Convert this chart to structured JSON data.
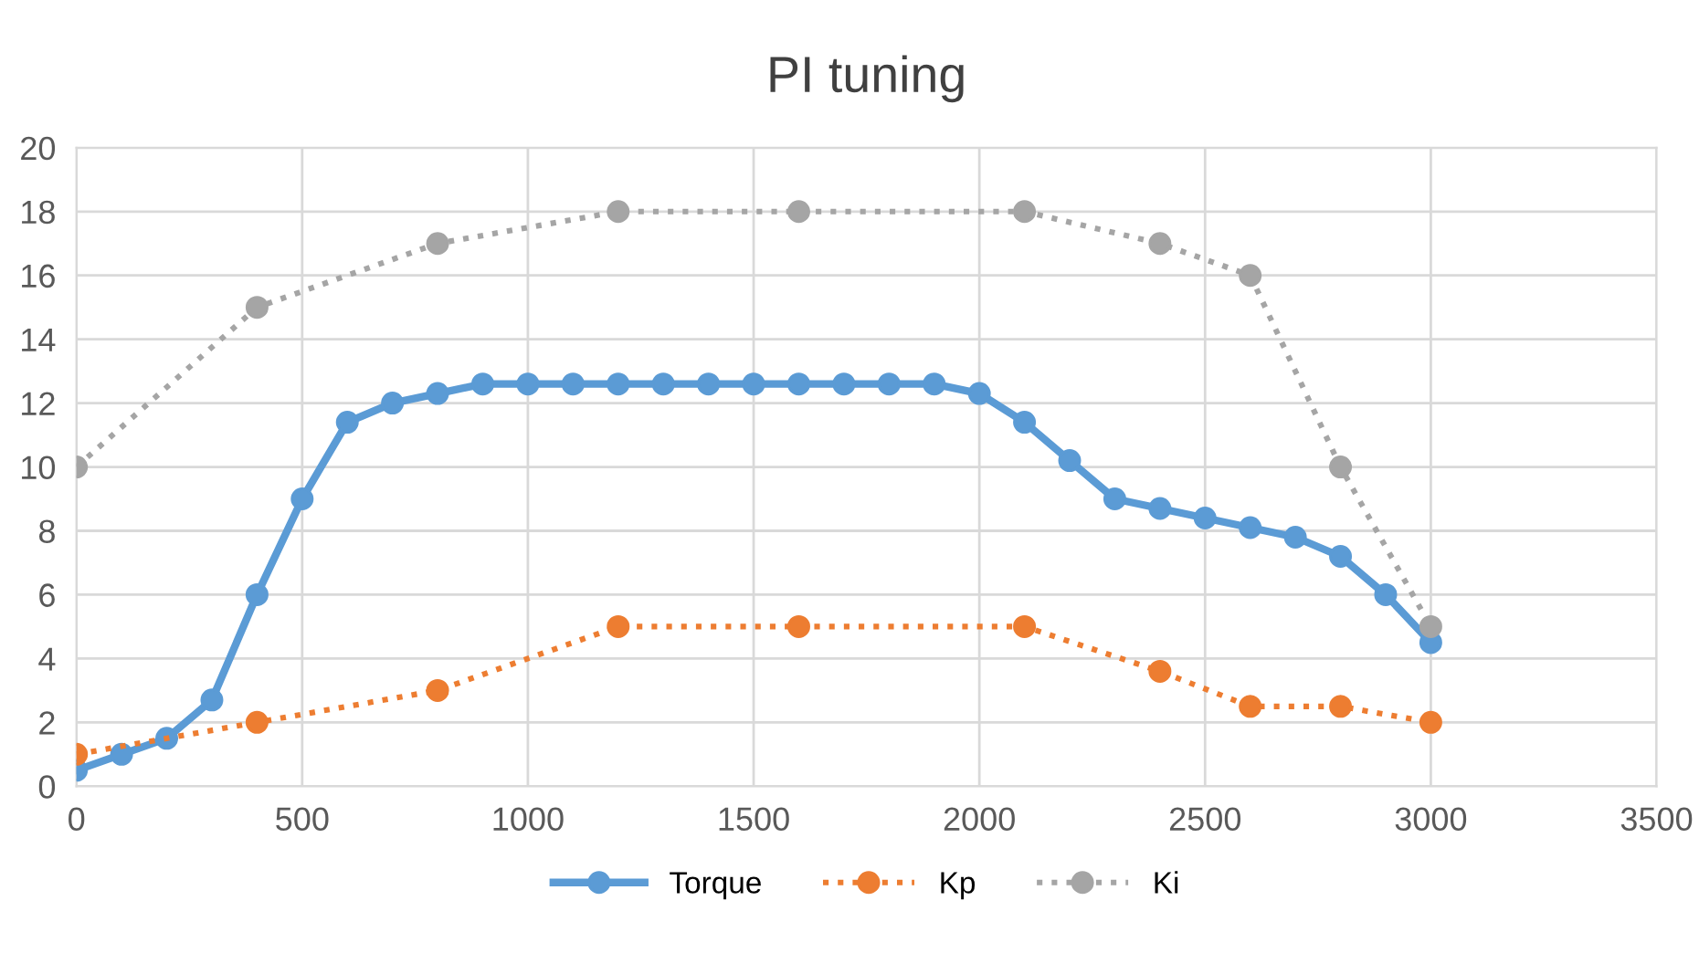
{
  "chart_data": {
    "type": "line",
    "title": "PI tuning",
    "xlim": [
      0,
      3500
    ],
    "xticks": [
      0,
      500,
      1000,
      1500,
      2000,
      2500,
      3000,
      3500
    ],
    "ylim": [
      0,
      20
    ],
    "yticks": [
      0,
      2,
      4,
      6,
      8,
      10,
      12,
      14,
      16,
      18,
      20
    ],
    "grid": true,
    "legend": "bottom",
    "marker": "circle",
    "series": [
      {
        "name": "Torque",
        "color": "#5b9bd5",
        "line_style": "solid",
        "x": [
          0,
          100,
          200,
          300,
          400,
          500,
          600,
          700,
          800,
          900,
          1000,
          1100,
          1200,
          1300,
          1400,
          1500,
          1600,
          1700,
          1800,
          1900,
          2000,
          2100,
          2200,
          2300,
          2400,
          2500,
          2600,
          2700,
          2800,
          2900,
          3000
        ],
        "values": [
          0.5,
          1.0,
          1.5,
          2.7,
          6.0,
          9.0,
          11.4,
          12.0,
          12.3,
          12.6,
          12.6,
          12.6,
          12.6,
          12.6,
          12.6,
          12.6,
          12.6,
          12.6,
          12.6,
          12.6,
          12.3,
          11.4,
          10.2,
          9.0,
          8.7,
          8.4,
          8.1,
          7.8,
          7.2,
          6.0,
          4.5
        ]
      },
      {
        "name": "Kp",
        "color": "#ed7d31",
        "line_style": "dotted",
        "x": [
          0,
          400,
          800,
          1200,
          1600,
          2100,
          2400,
          2600,
          2800,
          3000
        ],
        "values": [
          1,
          2,
          3,
          5,
          5,
          5,
          3.6,
          2.5,
          2.5,
          2
        ]
      },
      {
        "name": "Ki",
        "color": "#a5a5a5",
        "line_style": "dotted",
        "x": [
          0,
          400,
          800,
          1200,
          1600,
          2100,
          2400,
          2600,
          2800,
          3000
        ],
        "values": [
          10,
          15,
          17,
          18,
          18,
          18,
          17,
          16,
          10,
          5
        ]
      }
    ]
  }
}
